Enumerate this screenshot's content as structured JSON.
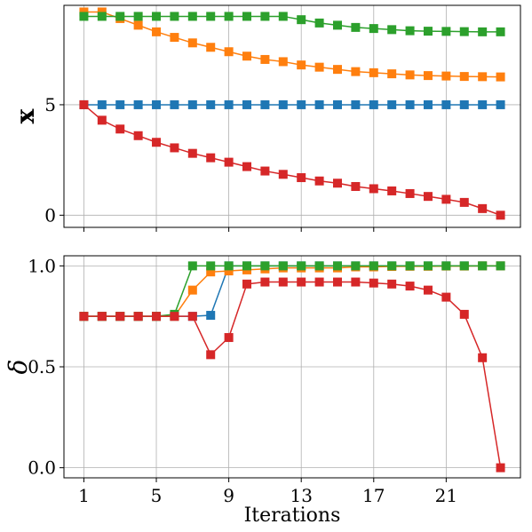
{
  "chart_data": [
    {
      "type": "line",
      "ylabel": "x",
      "xlabel": "",
      "grid": true,
      "xlim": [
        -0.1,
        25.1
      ],
      "ylim": [
        -0.55,
        9.5
      ],
      "xticks": [
        1,
        5,
        9,
        13,
        17,
        21
      ],
      "yticks": [
        0,
        5
      ],
      "x": [
        1,
        2,
        3,
        4,
        5,
        6,
        7,
        8,
        9,
        10,
        11,
        12,
        13,
        14,
        15,
        16,
        17,
        18,
        19,
        20,
        21,
        22,
        23,
        24
      ],
      "series": [
        {
          "color": "#1f77b4",
          "values": [
            5,
            5,
            5,
            5,
            5,
            5,
            5,
            5,
            5,
            5,
            5,
            5,
            5,
            5,
            5,
            5,
            5,
            5,
            5,
            5,
            5,
            5,
            5,
            5
          ]
        },
        {
          "color": "#ff7f0e",
          "values": [
            9.2,
            9.2,
            8.9,
            8.6,
            8.3,
            8.05,
            7.8,
            7.6,
            7.4,
            7.2,
            7.05,
            6.95,
            6.8,
            6.7,
            6.6,
            6.5,
            6.45,
            6.4,
            6.35,
            6.32,
            6.3,
            6.28,
            6.27,
            6.26
          ]
        },
        {
          "color": "#2ca02c",
          "values": [
            9.0,
            9.0,
            9.0,
            9.0,
            9.0,
            9.0,
            9.0,
            9.0,
            9.0,
            9.0,
            9.0,
            9.0,
            8.85,
            8.7,
            8.6,
            8.5,
            8.45,
            8.4,
            8.35,
            8.33,
            8.32,
            8.31,
            8.3,
            8.3
          ]
        },
        {
          "color": "#d62728",
          "values": [
            5.0,
            4.3,
            3.9,
            3.6,
            3.3,
            3.05,
            2.8,
            2.6,
            2.4,
            2.2,
            2.0,
            1.85,
            1.7,
            1.55,
            1.45,
            1.3,
            1.2,
            1.1,
            0.98,
            0.85,
            0.72,
            0.58,
            0.3,
            0.0
          ]
        }
      ]
    },
    {
      "type": "line",
      "ylabel": "δ",
      "xlabel": "Iterations",
      "grid": true,
      "xlim": [
        -0.1,
        25.1
      ],
      "ylim": [
        -0.05,
        1.05
      ],
      "xticks": [
        1,
        5,
        9,
        13,
        17,
        21
      ],
      "yticks": [
        0.0,
        0.5,
        1.0
      ],
      "x": [
        1,
        2,
        3,
        4,
        5,
        6,
        7,
        8,
        9,
        10,
        11,
        12,
        13,
        14,
        15,
        16,
        17,
        18,
        19,
        20,
        21,
        22,
        23,
        24
      ],
      "series": [
        {
          "color": "#1f77b4",
          "values": [
            0.75,
            0.75,
            0.75,
            0.75,
            0.75,
            0.75,
            0.75,
            0.755,
            1.0,
            1.0,
            1.0,
            1.0,
            1.0,
            1.0,
            1.0,
            1.0,
            1.0,
            1.0,
            1.0,
            1.0,
            1.0,
            1.0,
            1.0,
            1.0
          ]
        },
        {
          "color": "#ff7f0e",
          "values": [
            0.75,
            0.75,
            0.75,
            0.75,
            0.75,
            0.75,
            0.88,
            0.97,
            0.975,
            0.98,
            0.985,
            0.99,
            0.99,
            0.99,
            0.99,
            0.995,
            0.995,
            0.997,
            0.998,
            0.998,
            0.999,
            0.999,
            1.0,
            1.0
          ]
        },
        {
          "color": "#2ca02c",
          "values": [
            0.75,
            0.75,
            0.75,
            0.75,
            0.75,
            0.76,
            1.0,
            1.0,
            1.0,
            1.0,
            1.0,
            1.0,
            1.0,
            1.0,
            1.0,
            1.0,
            1.0,
            1.0,
            1.0,
            1.0,
            1.0,
            1.0,
            1.0,
            1.0
          ]
        },
        {
          "color": "#d62728",
          "values": [
            0.75,
            0.75,
            0.75,
            0.75,
            0.75,
            0.75,
            0.75,
            0.56,
            0.645,
            0.91,
            0.92,
            0.92,
            0.92,
            0.92,
            0.92,
            0.92,
            0.915,
            0.91,
            0.9,
            0.88,
            0.845,
            0.76,
            0.545,
            0.0
          ]
        }
      ]
    }
  ]
}
